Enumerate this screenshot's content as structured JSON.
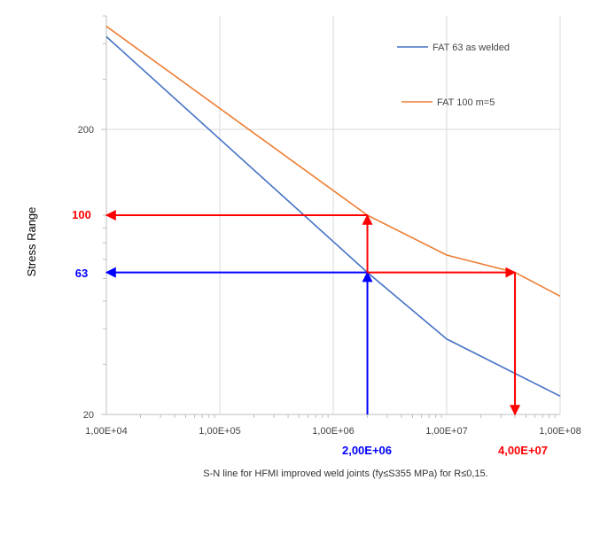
{
  "chart_data": {
    "type": "line",
    "title": "",
    "xlabel": "S-N line for HFMI improved weld joints (fy≤S355 MPa) for  R≤0,15.",
    "ylabel": "Stress Range",
    "x_scale": "log",
    "y_scale": "log",
    "xlim": [
      10000,
      100000000
    ],
    "ylim": [
      20,
      500
    ],
    "x_ticks": [
      10000,
      100000,
      1000000,
      10000000,
      100000000
    ],
    "x_tick_labels": [
      "1,00E+04",
      "1,00E+05",
      "1,00E+06",
      "1,00E+07",
      "1,00E+08"
    ],
    "y_ticks": [
      20,
      200
    ],
    "y_tick_labels": [
      "20",
      "200"
    ],
    "grid": true,
    "legend_position": "top-right",
    "series": [
      {
        "name": "FAT 63 as welded",
        "color": "#4472c4",
        "points": [
          [
            10000,
            423
          ],
          [
            2000000,
            63
          ],
          [
            10000000,
            36.8
          ],
          [
            100000000,
            23.2
          ]
        ]
      },
      {
        "name": "FAT 100 m=5",
        "color": "#ed7d31",
        "points": [
          [
            10000,
            460
          ],
          [
            2000000,
            100
          ],
          [
            10000000,
            72.5
          ],
          [
            40000000,
            63
          ],
          [
            100000000,
            52
          ]
        ]
      }
    ],
    "annotations": [
      {
        "label": "100",
        "color": "#ff0000",
        "type": "y"
      },
      {
        "label": "63",
        "color": "#0000ff",
        "type": "y"
      },
      {
        "label": "2,00E+06",
        "color": "#0000ff",
        "type": "x"
      },
      {
        "label": "4,00E+07",
        "color": "#ff0000",
        "type": "x"
      }
    ],
    "arrows": [
      {
        "name": "arrow-up-blue",
        "color": "#0000ff",
        "from": [
          2000000,
          20
        ],
        "to": [
          2000000,
          63
        ]
      },
      {
        "name": "arrow-left-blue",
        "color": "#0000ff",
        "from": [
          2000000,
          63
        ],
        "to": [
          10000,
          63
        ]
      },
      {
        "name": "arrow-up-red",
        "color": "#ff0000",
        "from": [
          2000000,
          63
        ],
        "to": [
          2000000,
          100
        ]
      },
      {
        "name": "arrow-left-red",
        "color": "#ff0000",
        "from": [
          2000000,
          100
        ],
        "to": [
          10000,
          100
        ]
      },
      {
        "name": "arrow-right-red",
        "color": "#ff0000",
        "from": [
          2000000,
          63
        ],
        "to": [
          40000000,
          63
        ]
      },
      {
        "name": "arrow-down-red",
        "color": "#ff0000",
        "from": [
          40000000,
          63
        ],
        "to": [
          40000000,
          20
        ]
      }
    ]
  }
}
